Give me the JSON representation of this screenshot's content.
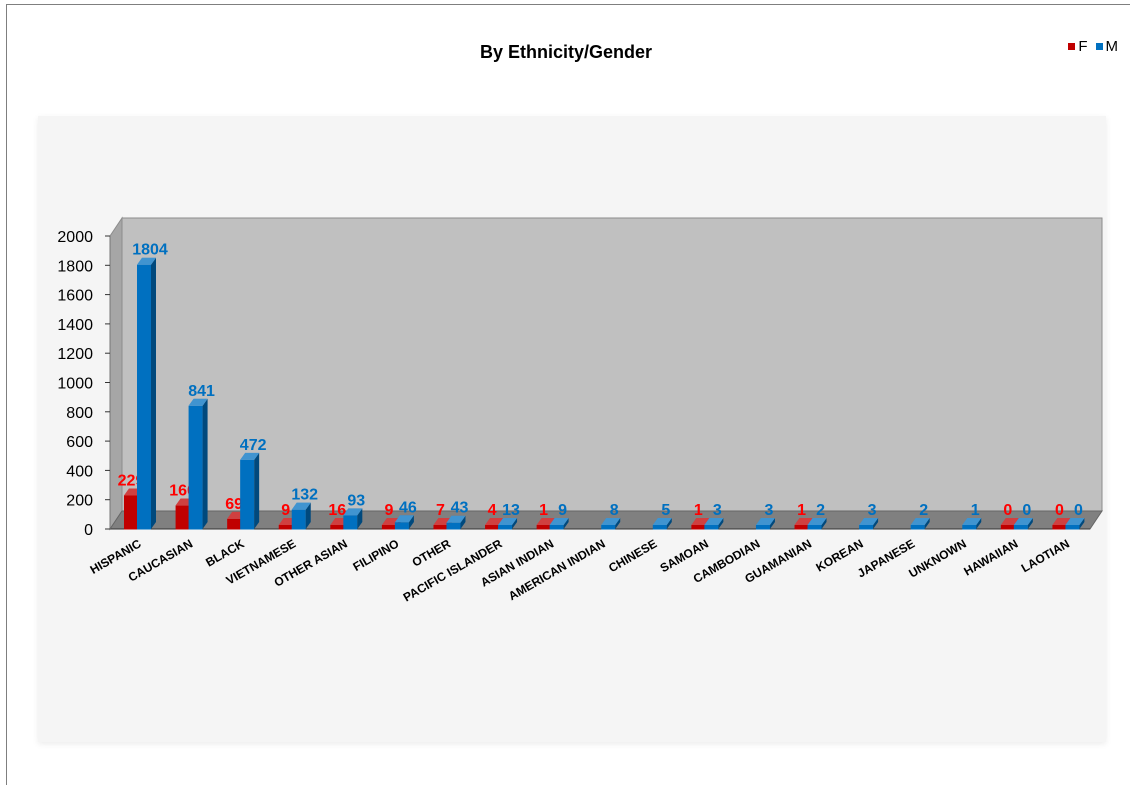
{
  "chart_data": {
    "type": "bar",
    "title": "By Ethnicity/Gender",
    "categories": [
      "HISPANIC",
      "CAUCASIAN",
      "BLACK",
      "VIETNAMESE",
      "OTHER ASIAN",
      "FILIPINO",
      "OTHER",
      "PACIFIC ISLANDER",
      "ASIAN INDIAN",
      "AMERICAN INDIAN",
      "CHINESE",
      "SAMOAN",
      "CAMBODIAN",
      "GUAMANIAN",
      "KOREAN",
      "JAPANESE",
      "UNKNOWN",
      "HAWAIIAN",
      "LAOTIAN"
    ],
    "series": [
      {
        "name": "F",
        "color": "#c00000",
        "label_color": "#ff0000",
        "values": [
          229,
          160,
          69,
          9,
          16,
          9,
          7,
          4,
          1,
          null,
          null,
          1,
          null,
          1,
          null,
          null,
          null,
          0,
          0
        ]
      },
      {
        "name": "M",
        "color": "#0070c0",
        "label_color": "#0070c0",
        "values": [
          1804,
          841,
          472,
          132,
          93,
          46,
          43,
          13,
          9,
          8,
          5,
          3,
          3,
          2,
          3,
          2,
          1,
          0,
          0
        ]
      }
    ],
    "ylim": [
      0,
      2000
    ],
    "yticks": [
      0,
      200,
      400,
      600,
      800,
      1000,
      1200,
      1400,
      1600,
      1800,
      2000
    ],
    "legend": "top-right",
    "style": "3d-clustered-column"
  }
}
